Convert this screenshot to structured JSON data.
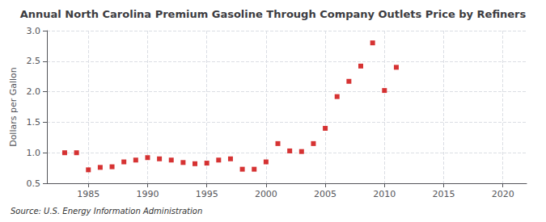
{
  "chart_data": {
    "type": "scatter",
    "title": "Annual North Carolina Premium Gasoline Through Company Outlets Price by Refiners",
    "ylabel": "Dollars per Gallon",
    "source": "Source: U.S. Energy Information Administration",
    "x": [
      1983,
      1984,
      1985,
      1986,
      1987,
      1988,
      1989,
      1990,
      1991,
      1992,
      1993,
      1994,
      1995,
      1996,
      1997,
      1998,
      1999,
      2000,
      2001,
      2002,
      2003,
      2004,
      2005,
      2006,
      2007,
      2008,
      2009,
      2010,
      2011
    ],
    "values": [
      1.0,
      1.0,
      0.72,
      0.76,
      0.77,
      0.85,
      0.88,
      0.92,
      0.9,
      0.88,
      0.84,
      0.82,
      0.83,
      0.88,
      0.9,
      0.73,
      0.73,
      0.85,
      1.15,
      1.03,
      1.02,
      1.15,
      1.4,
      1.92,
      2.17,
      2.42,
      2.8,
      2.02,
      2.4
    ],
    "color": "#cc0000",
    "marker": "square",
    "xlim": [
      1981.5,
      2022
    ],
    "xticks": [
      1985,
      1990,
      1995,
      2000,
      2005,
      2010,
      2015,
      2020
    ],
    "ylim": [
      0.5,
      3.0
    ],
    "yticks": [
      0.5,
      {
        "value": 1.0,
        "label": "1.0"
      },
      1.5,
      {
        "value": 2.0,
        "label": "2.0"
      },
      2.5,
      {
        "value": 3.0,
        "label": "3.0"
      }
    ],
    "grid": true
  }
}
